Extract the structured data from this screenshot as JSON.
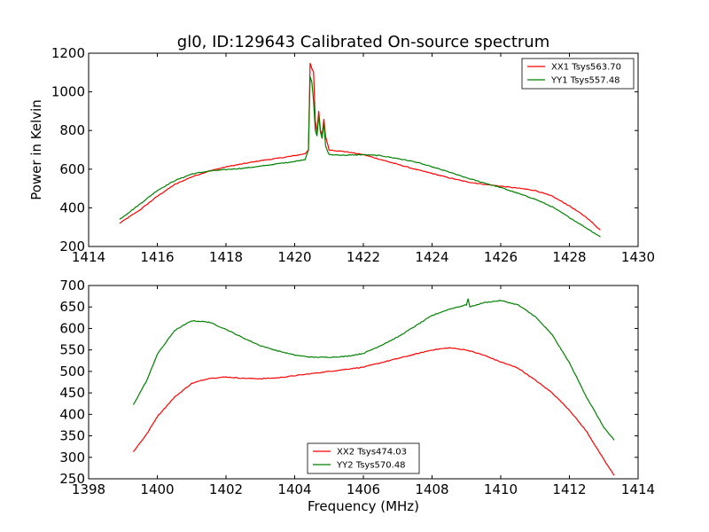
{
  "window": {
    "title": "gl0, ID:129643 Calibrated On-source spectrum"
  },
  "chart_data": [
    {
      "type": "line",
      "title": "gl0, ID:129643 Calibrated On-source spectrum",
      "xlabel": "",
      "ylabel": "Power in Kelvin",
      "xlim": [
        1414,
        1430
      ],
      "ylim": [
        200,
        1200
      ],
      "xticks": [
        "1414",
        "1416",
        "1418",
        "1420",
        "1422",
        "1424",
        "1426",
        "1428",
        "1430"
      ],
      "yticks": [
        "200",
        "400",
        "600",
        "800",
        "1000",
        "1200"
      ],
      "grid": false,
      "legend_position": "top-right",
      "series": [
        {
          "name": "XX1 Tsys563.70",
          "color": "#ff0000",
          "points": [
            [
              1414.9,
              320
            ],
            [
              1415.5,
              390
            ],
            [
              1416,
              460
            ],
            [
              1416.5,
              520
            ],
            [
              1417,
              560
            ],
            [
              1417.5,
              590
            ],
            [
              1418,
              612
            ],
            [
              1418.5,
              628
            ],
            [
              1419,
              644
            ],
            [
              1419.5,
              656
            ],
            [
              1420,
              670
            ],
            [
              1420.3,
              680
            ],
            [
              1420.4,
              700
            ],
            [
              1420.45,
              1150
            ],
            [
              1420.5,
              1120
            ],
            [
              1420.55,
              1100
            ],
            [
              1420.6,
              850
            ],
            [
              1420.65,
              790
            ],
            [
              1420.7,
              900
            ],
            [
              1420.75,
              800
            ],
            [
              1420.8,
              780
            ],
            [
              1420.85,
              860
            ],
            [
              1420.9,
              770
            ],
            [
              1421,
              700
            ],
            [
              1421.5,
              690
            ],
            [
              1422,
              675
            ],
            [
              1422.5,
              650
            ],
            [
              1423,
              625
            ],
            [
              1423.5,
              600
            ],
            [
              1424,
              578
            ],
            [
              1424.5,
              555
            ],
            [
              1425,
              535
            ],
            [
              1425.5,
              522
            ],
            [
              1426,
              512
            ],
            [
              1426.5,
              502
            ],
            [
              1427,
              490
            ],
            [
              1427.5,
              460
            ],
            [
              1428,
              410
            ],
            [
              1428.5,
              350
            ],
            [
              1428.9,
              285
            ]
          ]
        },
        {
          "name": "YY1 Tsys557.48",
          "color": "#008000",
          "points": [
            [
              1414.9,
              340
            ],
            [
              1415.5,
              420
            ],
            [
              1416,
              490
            ],
            [
              1416.5,
              540
            ],
            [
              1417,
              575
            ],
            [
              1417.5,
              590
            ],
            [
              1418,
              598
            ],
            [
              1418.5,
              605
            ],
            [
              1419,
              615
            ],
            [
              1419.5,
              628
            ],
            [
              1420,
              640
            ],
            [
              1420.3,
              650
            ],
            [
              1420.4,
              700
            ],
            [
              1420.45,
              1080
            ],
            [
              1420.5,
              1050
            ],
            [
              1420.55,
              950
            ],
            [
              1420.6,
              800
            ],
            [
              1420.65,
              770
            ],
            [
              1420.7,
              880
            ],
            [
              1420.75,
              790
            ],
            [
              1420.8,
              760
            ],
            [
              1420.85,
              840
            ],
            [
              1420.9,
              720
            ],
            [
              1421,
              675
            ],
            [
              1421.5,
              672
            ],
            [
              1422,
              675
            ],
            [
              1422.5,
              670
            ],
            [
              1423,
              655
            ],
            [
              1423.5,
              638
            ],
            [
              1424,
              612
            ],
            [
              1424.5,
              585
            ],
            [
              1425,
              555
            ],
            [
              1425.5,
              530
            ],
            [
              1426,
              505
            ],
            [
              1426.5,
              475
            ],
            [
              1427,
              445
            ],
            [
              1427.5,
              405
            ],
            [
              1428,
              350
            ],
            [
              1428.5,
              295
            ],
            [
              1428.9,
              250
            ]
          ]
        }
      ]
    },
    {
      "type": "line",
      "title": "",
      "xlabel": "Frequency (MHz)",
      "ylabel": "",
      "xlim": [
        1398,
        1414
      ],
      "ylim": [
        250,
        700
      ],
      "xticks": [
        "1398",
        "1400",
        "1402",
        "1404",
        "1406",
        "1408",
        "1410",
        "1412",
        "1414"
      ],
      "yticks": [
        "250",
        "300",
        "350",
        "400",
        "450",
        "500",
        "550",
        "600",
        "650",
        "700"
      ],
      "grid": false,
      "legend_position": "bottom-center",
      "series": [
        {
          "name": "XX2 Tsys474.03",
          "color": "#ff0000",
          "points": [
            [
              1399.3,
              313
            ],
            [
              1399.7,
              355
            ],
            [
              1400,
              395
            ],
            [
              1400.5,
              440
            ],
            [
              1401,
              472
            ],
            [
              1401.5,
              484
            ],
            [
              1402,
              487
            ],
            [
              1402.5,
              484
            ],
            [
              1403,
              483
            ],
            [
              1403.5,
              485
            ],
            [
              1404,
              490
            ],
            [
              1404.5,
              495
            ],
            [
              1405,
              500
            ],
            [
              1405.5,
              505
            ],
            [
              1406,
              510
            ],
            [
              1406.5,
              520
            ],
            [
              1407,
              530
            ],
            [
              1407.5,
              540
            ],
            [
              1408,
              550
            ],
            [
              1408.5,
              555
            ],
            [
              1409,
              550
            ],
            [
              1409.5,
              538
            ],
            [
              1410,
              522
            ],
            [
              1410.5,
              508
            ],
            [
              1411,
              480
            ],
            [
              1411.5,
              450
            ],
            [
              1412,
              410
            ],
            [
              1412.5,
              360
            ],
            [
              1413,
              295
            ],
            [
              1413.3,
              258
            ]
          ]
        },
        {
          "name": "YY2 Tsys570.48",
          "color": "#008000",
          "points": [
            [
              1399.3,
              422
            ],
            [
              1399.7,
              480
            ],
            [
              1400,
              540
            ],
            [
              1400.5,
              595
            ],
            [
              1401,
              618
            ],
            [
              1401.5,
              615
            ],
            [
              1402,
              598
            ],
            [
              1402.5,
              578
            ],
            [
              1403,
              560
            ],
            [
              1403.5,
              548
            ],
            [
              1404,
              538
            ],
            [
              1404.5,
              533
            ],
            [
              1405,
              533
            ],
            [
              1405.5,
              535
            ],
            [
              1406,
              542
            ],
            [
              1406.5,
              560
            ],
            [
              1407,
              580
            ],
            [
              1407.5,
              605
            ],
            [
              1408,
              630
            ],
            [
              1408.5,
              645
            ],
            [
              1409,
              655
            ],
            [
              1409.05,
              670
            ],
            [
              1409.1,
              650
            ],
            [
              1409.5,
              660
            ],
            [
              1410,
              665
            ],
            [
              1410.5,
              655
            ],
            [
              1411,
              628
            ],
            [
              1411.5,
              585
            ],
            [
              1412,
              520
            ],
            [
              1412.5,
              440
            ],
            [
              1413,
              370
            ],
            [
              1413.3,
              340
            ]
          ]
        }
      ]
    }
  ]
}
